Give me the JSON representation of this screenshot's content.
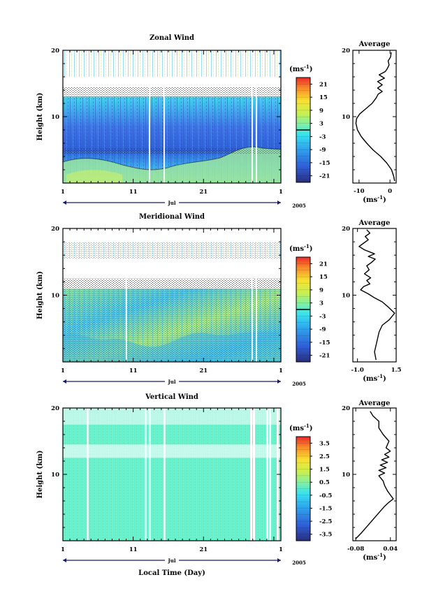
{
  "chart_data": [
    {
      "type": "heatmap",
      "title": "Zonal Wind",
      "ylabel": "Height (km)",
      "ylim": [
        0,
        20
      ],
      "yticks": [
        "20",
        "10"
      ],
      "xticks": [
        "1",
        "11",
        "21",
        "1"
      ],
      "xlim": [
        1,
        32
      ],
      "timeline_label": "Jul",
      "year_label": "2005",
      "colorbar": {
        "unit": "(ms",
        "unit_sup": "-1",
        "unit_close": ")",
        "labels": [
          "21",
          "15",
          "9",
          "3",
          "-3",
          "-9",
          "-15",
          "-21"
        ],
        "range": [
          -24,
          24
        ],
        "zero_line": true
      },
      "average": {
        "title": "Average",
        "xlabel": "(ms",
        "xlabel_sup": "-1",
        "xlabel_close": ")",
        "xticks": [
          "-10",
          "0"
        ],
        "xtick_values": [
          -10,
          0
        ],
        "xlim": [
          -12,
          2
        ],
        "ylim": [
          0,
          20
        ],
        "yticks": [
          "20",
          "10"
        ],
        "profile": [
          [
            1.5,
            0.3
          ],
          [
            1.2,
            1
          ],
          [
            0.5,
            2
          ],
          [
            -1,
            3
          ],
          [
            -3,
            4
          ],
          [
            -5.5,
            5
          ],
          [
            -7.5,
            6
          ],
          [
            -9.3,
            7
          ],
          [
            -10.5,
            8
          ],
          [
            -11,
            9
          ],
          [
            -10.8,
            9.7
          ],
          [
            -9.8,
            10.4
          ],
          [
            -7.8,
            11.2
          ],
          [
            -5.8,
            12
          ],
          [
            -4.5,
            12.8
          ],
          [
            -3.8,
            13.4
          ],
          [
            -2.5,
            13.8
          ],
          [
            -4,
            14.3
          ],
          [
            -2.5,
            14.8
          ],
          [
            -4,
            15.3
          ],
          [
            -1.8,
            15.8
          ],
          [
            -3.5,
            16.3
          ],
          [
            -1.5,
            16.8
          ],
          [
            -0.8,
            17.3
          ],
          [
            -0.3,
            17.8
          ],
          [
            -0.6,
            18.4
          ],
          [
            0.2,
            19
          ],
          [
            0.4,
            19.7
          ]
        ]
      }
    },
    {
      "type": "heatmap",
      "title": "Meridional Wind",
      "ylabel": "Height (km)",
      "ylim": [
        0,
        20
      ],
      "yticks": [
        "20",
        "10"
      ],
      "xticks": [
        "1",
        "11",
        "21",
        "1"
      ],
      "xlim": [
        1,
        32
      ],
      "timeline_label": "Jul",
      "year_label": "2005",
      "colorbar": {
        "unit": "(ms",
        "unit_sup": "-1",
        "unit_close": ")",
        "labels": [
          "21",
          "15",
          "9",
          "3",
          "-3",
          "-9",
          "-15",
          "-21"
        ],
        "range": [
          -24,
          24
        ],
        "zero_line": true
      },
      "average": {
        "title": "Average",
        "xlabel": "(ms",
        "xlabel_sup": "-1",
        "xlabel_close": ")",
        "xticks": [
          "-1.0",
          "1.5"
        ],
        "xtick_values": [
          -1,
          1.5
        ],
        "xlim": [
          -1.3,
          1.5
        ],
        "ylim": [
          0,
          20
        ],
        "yticks": [
          "20",
          "10"
        ],
        "profile": [
          [
            0.2,
            0.3
          ],
          [
            0.1,
            1.5
          ],
          [
            0.25,
            3
          ],
          [
            0.4,
            4.5
          ],
          [
            0.6,
            5.5
          ],
          [
            1.05,
            6.3
          ],
          [
            1.4,
            7.3
          ],
          [
            1.0,
            8.2
          ],
          [
            0.6,
            9
          ],
          [
            0.1,
            9.6
          ],
          [
            -0.3,
            10.2
          ],
          [
            -0.8,
            10.8
          ],
          [
            -0.6,
            11.3
          ],
          [
            -0.2,
            11.7
          ],
          [
            -0.4,
            12.2
          ],
          [
            -0.15,
            12.6
          ],
          [
            -0.55,
            13.2
          ],
          [
            -0.25,
            13.8
          ],
          [
            -0.4,
            14.4
          ],
          [
            -0.1,
            14.9
          ],
          [
            0.15,
            15.4
          ],
          [
            -0.3,
            15.8
          ],
          [
            0.1,
            16.2
          ],
          [
            -0.55,
            16.8
          ],
          [
            -0.9,
            17.3
          ],
          [
            -0.6,
            17.8
          ],
          [
            -0.3,
            18.3
          ],
          [
            -0.5,
            18.8
          ],
          [
            -0.2,
            19.3
          ],
          [
            -0.4,
            19.8
          ]
        ]
      }
    },
    {
      "type": "heatmap",
      "title": "Vertical Wind",
      "ylabel": "Height (km)",
      "xlabel": "Local Time (Day)",
      "ylim": [
        0,
        20
      ],
      "yticks": [
        "20",
        "10"
      ],
      "xticks": [
        "1",
        "11",
        "21",
        "1"
      ],
      "xlim": [
        1,
        32
      ],
      "timeline_label": "Jul",
      "year_label": "2005",
      "colorbar": {
        "unit": "(ms",
        "unit_sup": "-1",
        "unit_close": ")",
        "labels": [
          "3.5",
          "2.5",
          "1.5",
          "0.5",
          "-0.5",
          "-1.5",
          "-2.5",
          "-3.5"
        ],
        "range": [
          -4,
          4
        ],
        "zero_line": false
      },
      "average": {
        "title": "Average",
        "xlabel": "(ms",
        "xlabel_sup": "-1",
        "xlabel_close": ")",
        "xticks": [
          "-0.08",
          "0.04"
        ],
        "xtick_values": [
          -0.08,
          0.04
        ],
        "xlim": [
          -0.09,
          0.06
        ],
        "ylim": [
          0,
          20
        ],
        "yticks": [
          "20",
          "10"
        ],
        "profile": [
          [
            -0.08,
            0.3
          ],
          [
            -0.06,
            1.2
          ],
          [
            -0.04,
            2.2
          ],
          [
            -0.02,
            3.2
          ],
          [
            0.0,
            4.2
          ],
          [
            0.02,
            5.2
          ],
          [
            0.035,
            5.8
          ],
          [
            0.05,
            6.3
          ],
          [
            0.04,
            6.9
          ],
          [
            0.03,
            7.5
          ],
          [
            0.02,
            8.3
          ],
          [
            0.015,
            9
          ],
          [
            0.0,
            9.8
          ],
          [
            0.02,
            10.2
          ],
          [
            0.0,
            10.6
          ],
          [
            0.025,
            11
          ],
          [
            0.005,
            11.4
          ],
          [
            0.03,
            11.8
          ],
          [
            0.01,
            12.2
          ],
          [
            0.035,
            12.6
          ],
          [
            0.02,
            13
          ],
          [
            0.04,
            13.5
          ],
          [
            0.025,
            14
          ],
          [
            0.035,
            15
          ],
          [
            0.015,
            16
          ],
          [
            0.0,
            17
          ],
          [
            0.0,
            18
          ],
          [
            -0.02,
            18.8
          ],
          [
            -0.03,
            19.5
          ]
        ]
      }
    }
  ]
}
